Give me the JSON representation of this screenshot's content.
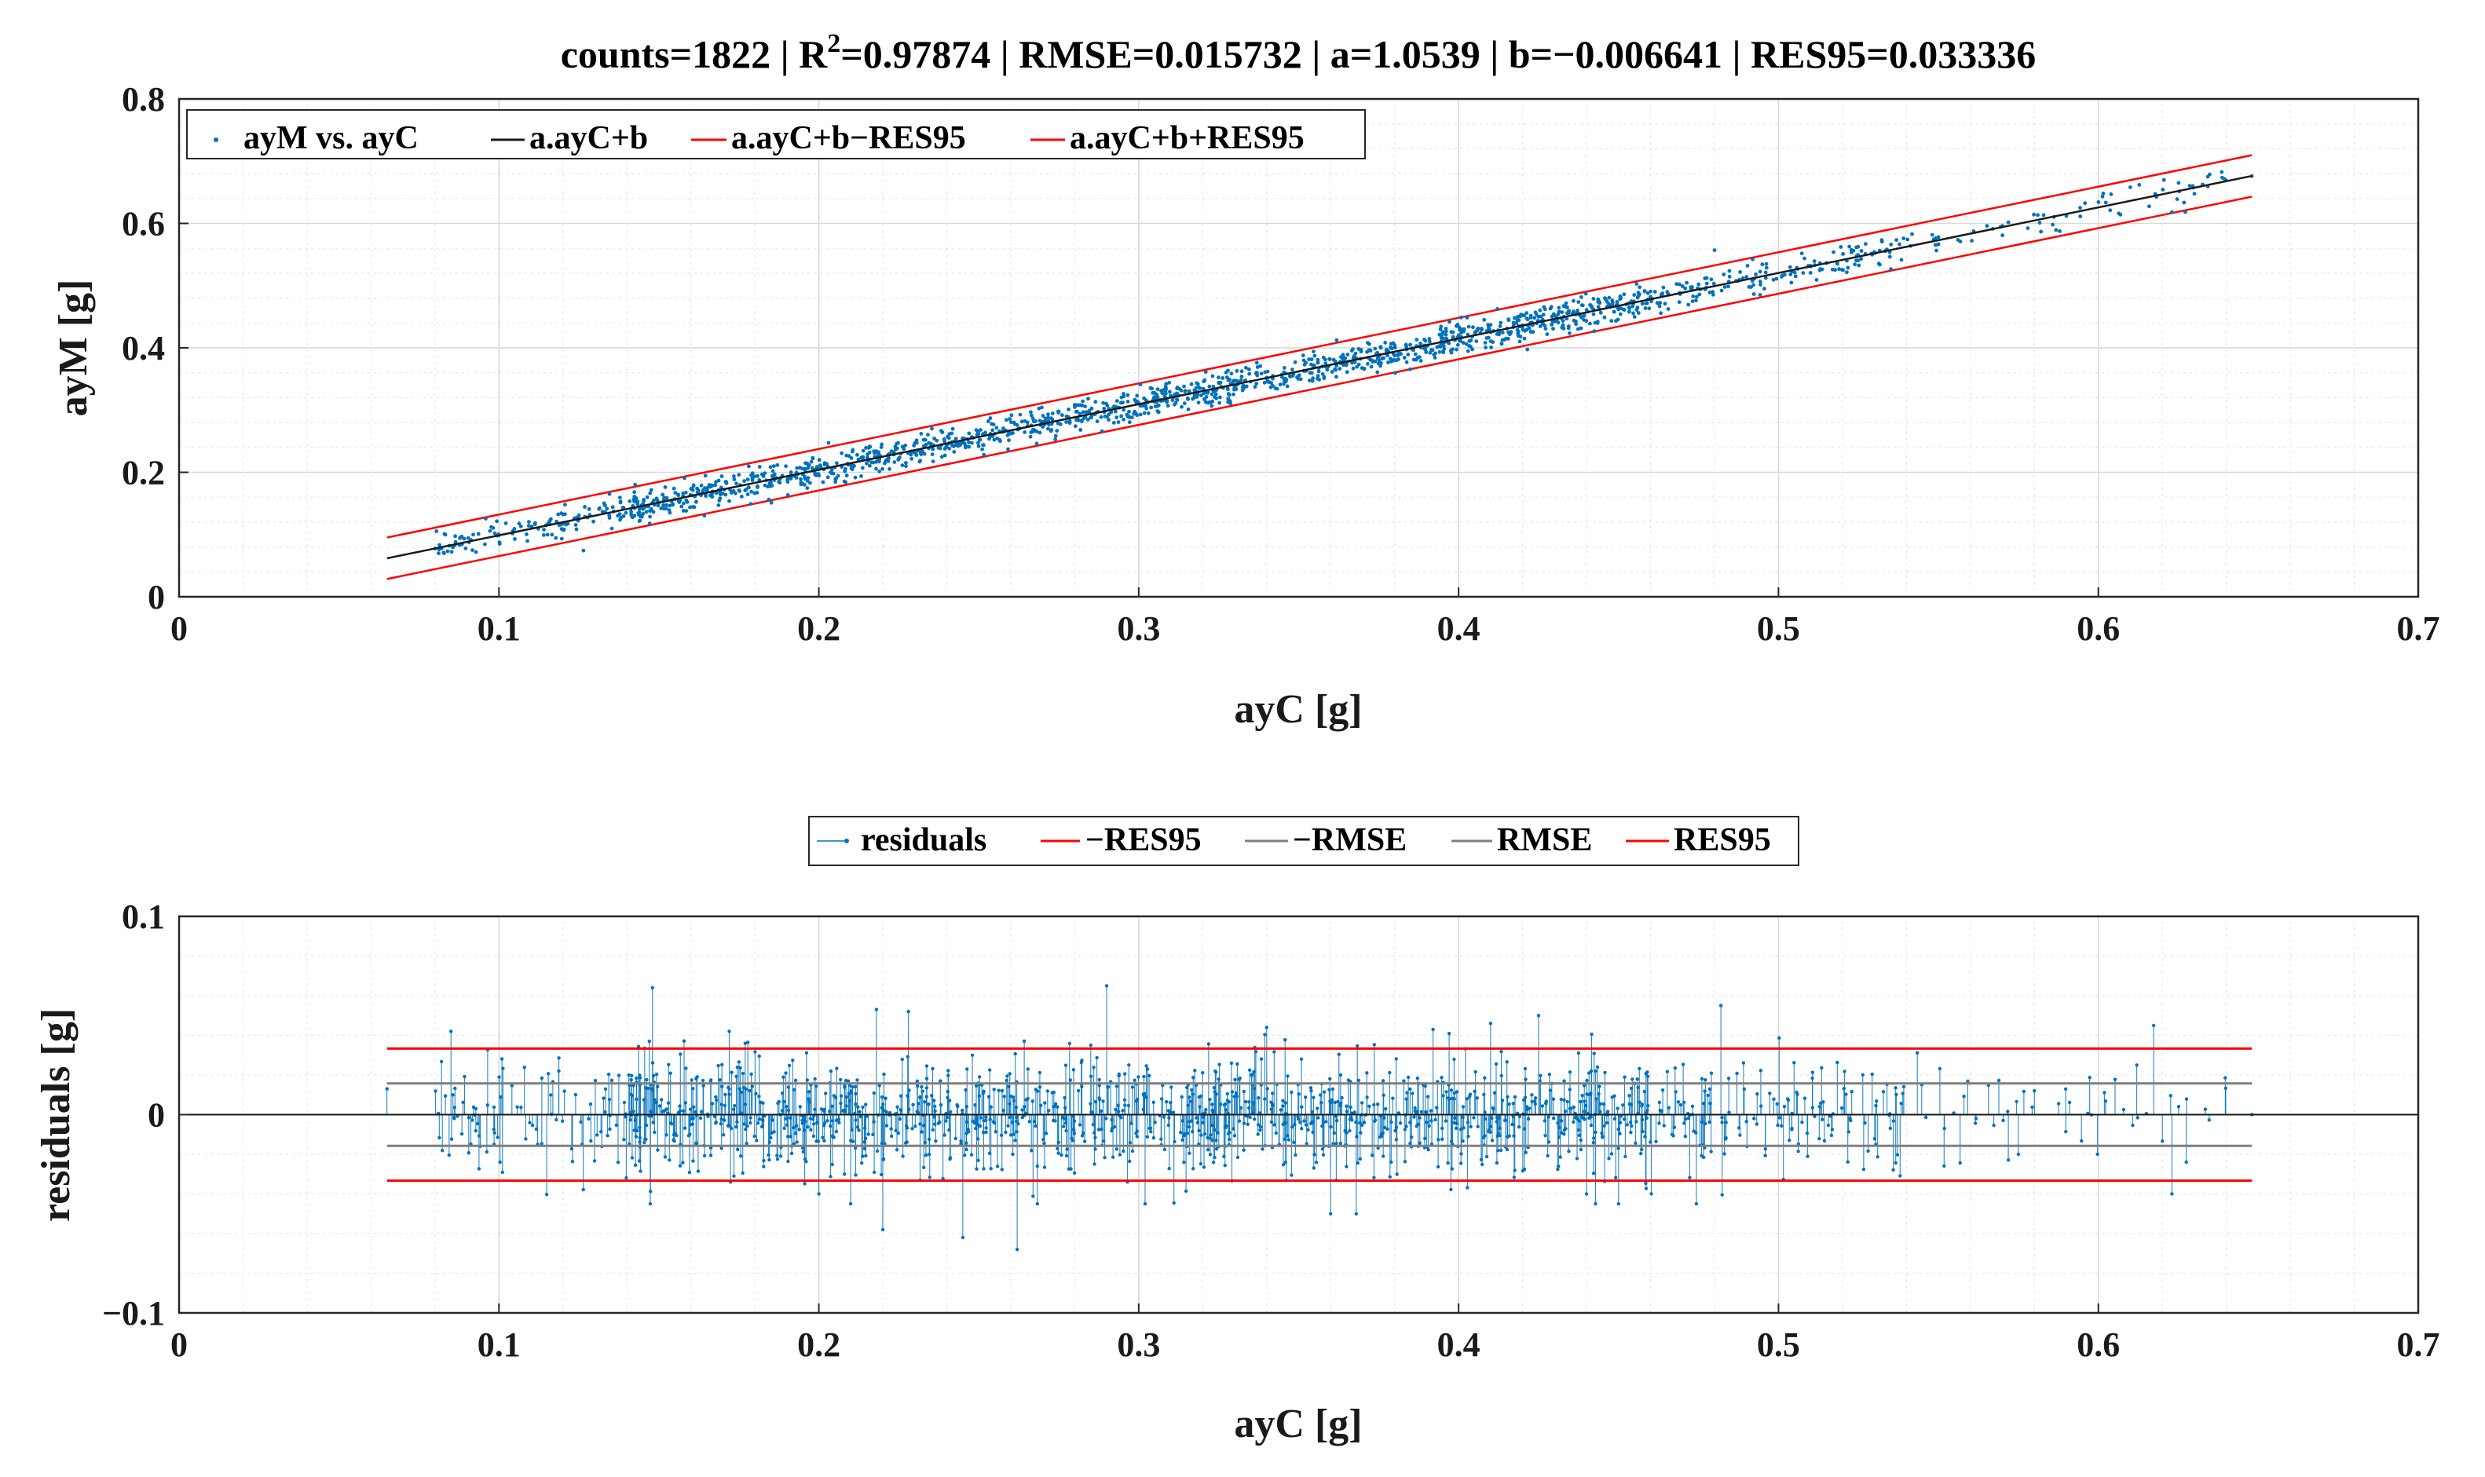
{
  "title": {
    "prefix": "counts=1822 | R",
    "sup": "2",
    "suffix": "=0.97874 | RMSE=0.015732 | a=1.0539 | b=−0.006641 | RES95=0.033336"
  },
  "chart_data": [
    {
      "type": "scatter",
      "xlabel": "ayC [g]",
      "ylabel": "ayM [g]",
      "xlim": [
        0,
        0.7
      ],
      "ylim": [
        0,
        0.8
      ],
      "xticks": [
        "0",
        "0.1",
        "0.2",
        "0.3",
        "0.4",
        "0.5",
        "0.6",
        "0.7"
      ],
      "yticks": [
        "0",
        "0.2",
        "0.4",
        "0.6",
        "0.8"
      ],
      "grid": true,
      "legend_position": "top-left",
      "legend": [
        "ayM vs. ayC",
        "a.ayC+b",
        "a.ayC+b−RES95",
        "a.ayC+b+RES95"
      ],
      "fit": {
        "a": 1.0539,
        "b": -0.006641,
        "res95": 0.033336,
        "x_range": [
          0.065,
          0.648
        ]
      },
      "series_colors": {
        "points": "#0072BD",
        "fit": "#1a1a1a",
        "bounds": "#FF0000"
      },
      "sample_points": [
        [
          0.083,
          0.101
        ],
        [
          0.1,
          0.099
        ],
        [
          0.118,
          0.121
        ],
        [
          0.125,
          0.131
        ],
        [
          0.138,
          0.153
        ],
        [
          0.145,
          0.141
        ],
        [
          0.155,
          0.157
        ],
        [
          0.165,
          0.172
        ],
        [
          0.175,
          0.196
        ],
        [
          0.185,
          0.184
        ],
        [
          0.195,
          0.197
        ],
        [
          0.205,
          0.208
        ],
        [
          0.212,
          0.228
        ],
        [
          0.218,
          0.234
        ],
        [
          0.225,
          0.222
        ],
        [
          0.232,
          0.262
        ],
        [
          0.24,
          0.243
        ],
        [
          0.248,
          0.256
        ],
        [
          0.255,
          0.262
        ],
        [
          0.262,
          0.276
        ],
        [
          0.27,
          0.273
        ],
        [
          0.278,
          0.289
        ],
        [
          0.285,
          0.288
        ],
        [
          0.292,
          0.304
        ],
        [
          0.3,
          0.311
        ],
        [
          0.305,
          0.313
        ],
        [
          0.31,
          0.323
        ],
        [
          0.318,
          0.329
        ],
        [
          0.325,
          0.344
        ],
        [
          0.332,
          0.348
        ],
        [
          0.34,
          0.352
        ],
        [
          0.348,
          0.365
        ],
        [
          0.356,
          0.381
        ],
        [
          0.364,
          0.385
        ],
        [
          0.372,
          0.384
        ],
        [
          0.38,
          0.404
        ],
        [
          0.39,
          0.403
        ],
        [
          0.4,
          0.419
        ],
        [
          0.41,
          0.437
        ],
        [
          0.42,
          0.434
        ],
        [
          0.43,
          0.452
        ],
        [
          0.44,
          0.461
        ],
        [
          0.45,
          0.462
        ],
        [
          0.46,
          0.482
        ],
        [
          0.47,
          0.499
        ],
        [
          0.48,
          0.557
        ],
        [
          0.49,
          0.514
        ],
        [
          0.51,
          0.532
        ],
        [
          0.53,
          0.554
        ],
        [
          0.55,
          0.578
        ],
        [
          0.57,
          0.596
        ],
        [
          0.59,
          0.612
        ],
        [
          0.61,
          0.658
        ],
        [
          0.623,
          0.618
        ],
        [
          0.648,
          0.676
        ]
      ]
    },
    {
      "type": "stem",
      "xlabel": "ayC [g]",
      "ylabel": "residuals [g]",
      "xlim": [
        0,
        0.7
      ],
      "ylim": [
        -0.1,
        0.1
      ],
      "xticks": [
        "0",
        "0.1",
        "0.2",
        "0.3",
        "0.4",
        "0.5",
        "0.6",
        "0.7"
      ],
      "yticks": [
        "−0.1",
        "0",
        "0.1"
      ],
      "grid": true,
      "legend_position": "top-center",
      "legend": [
        "residuals",
        "−RES95",
        "−RMSE",
        "RMSE",
        "RES95"
      ],
      "levels": {
        "res95": 0.033336,
        "rmse": 0.015732
      },
      "series_colors": {
        "stems": "#0072BD",
        "rmse": "#7f7f7f",
        "res95": "#FF0000",
        "zero": "#1a1a1a"
      },
      "sample_residuals": [
        [
          0.065,
          0.013
        ],
        [
          0.085,
          0.042
        ],
        [
          0.147,
          0.037
        ],
        [
          0.148,
          0.064
        ],
        [
          0.172,
          0.042
        ],
        [
          0.2,
          -0.04
        ],
        [
          0.208,
          -0.03
        ],
        [
          0.218,
          0.053
        ],
        [
          0.22,
          -0.058
        ],
        [
          0.228,
          0.052
        ],
        [
          0.245,
          -0.062
        ],
        [
          0.248,
          0.03
        ],
        [
          0.262,
          -0.068
        ],
        [
          0.285,
          0.035
        ],
        [
          0.29,
          0.065
        ],
        [
          0.302,
          -0.045
        ],
        [
          0.34,
          0.044
        ],
        [
          0.36,
          -0.05
        ],
        [
          0.368,
          -0.05
        ],
        [
          0.392,
          0.043
        ],
        [
          0.41,
          0.046
        ],
        [
          0.425,
          0.05
        ],
        [
          0.44,
          -0.04
        ],
        [
          0.45,
          -0.045
        ],
        [
          0.482,
          0.055
        ],
        [
          0.575,
          -0.02
        ],
        [
          0.58,
          0.012
        ],
        [
          0.612,
          0.025
        ],
        [
          0.623,
          -0.04
        ],
        [
          0.648,
          0
        ]
      ]
    }
  ]
}
